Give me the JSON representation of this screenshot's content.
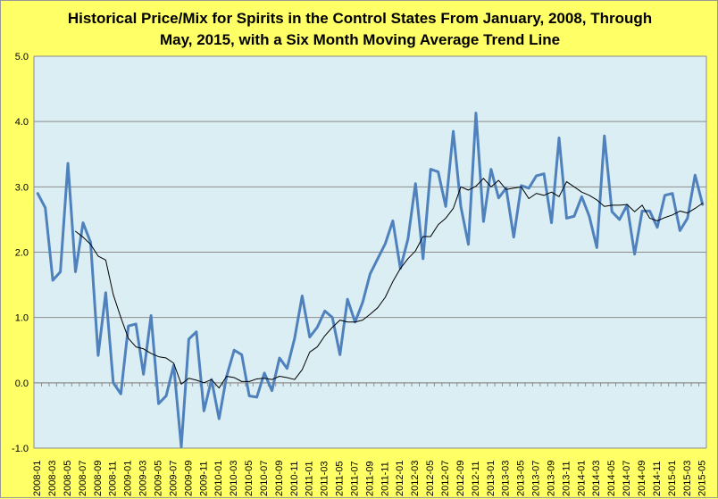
{
  "chart_data": {
    "type": "line",
    "title_lines": [
      "Historical Price/Mix for Spirits in the Control States From January, 2008, Through",
      "May, 2015, with a Six Month Moving Average Trend Line"
    ],
    "xlabel": "",
    "ylabel": "",
    "ylim": [
      -1.0,
      5.0
    ],
    "yticks": [
      "5.0",
      "4.0",
      "3.0",
      "2.0",
      "1.0",
      "0.0",
      "-1.0"
    ],
    "xtick_labels": [
      "2008-01",
      "2008-03",
      "2008-05",
      "2008-07",
      "2008-09",
      "2008-11",
      "2009-01",
      "2009-03",
      "2009-05",
      "2009-07",
      "2009-09",
      "2009-11",
      "2010-01",
      "2010-03",
      "2010-05",
      "2010-07",
      "2010-09",
      "2010-11",
      "2011-01",
      "2011-03",
      "2011-05",
      "2011-07",
      "2011-09",
      "2011-11",
      "2012-01",
      "2012-03",
      "2012-05",
      "2012-07",
      "2012-09",
      "2012-11",
      "2013-01",
      "2013-03",
      "2013-05",
      "2013-07",
      "2013-09",
      "2013-11",
      "2014-01",
      "2014-03",
      "2014-05",
      "2014-07",
      "2014-09",
      "2014-11",
      "2015-01",
      "2015-03",
      "2015-05"
    ],
    "grid": "horizontal",
    "legend": "none",
    "series": [
      {
        "color": "#4f81bd",
        "values": [
          2.9,
          2.68,
          1.57,
          1.7,
          3.36,
          1.7,
          2.45,
          2.15,
          0.42,
          1.38,
          0.0,
          -0.17,
          0.87,
          0.9,
          0.13,
          1.03,
          -0.32,
          -0.2,
          0.27,
          -0.98,
          0.67,
          0.78,
          -0.43,
          0.05,
          -0.55,
          0.1,
          0.5,
          0.43,
          -0.2,
          -0.22,
          0.15,
          -0.12,
          0.38,
          0.22,
          0.68,
          1.33,
          0.7,
          0.85,
          1.1,
          1.0,
          0.43,
          1.28,
          0.93,
          1.23,
          1.67,
          1.9,
          2.13,
          2.48,
          1.75,
          2.2,
          3.05,
          1.9,
          3.27,
          3.23,
          2.7,
          3.85,
          2.7,
          2.12,
          4.13,
          2.47,
          3.27,
          2.83,
          2.98,
          2.23,
          3.02,
          2.98,
          3.17,
          3.2,
          2.45,
          3.75,
          2.52,
          2.55,
          2.85,
          2.55,
          2.07,
          3.78,
          2.62,
          2.5,
          2.72,
          1.97,
          2.63,
          2.63,
          2.38,
          2.87,
          2.9,
          2.33,
          2.52,
          3.18,
          2.73
        ]
      },
      {
        "color": "#000000",
        "values": [
          null,
          null,
          null,
          null,
          null,
          2.32,
          2.23,
          2.12,
          1.94,
          1.88,
          1.35,
          1.0,
          0.68,
          0.55,
          0.52,
          0.45,
          0.4,
          0.38,
          0.3,
          -0.02,
          0.07,
          0.04,
          0.0,
          0.05,
          -0.08,
          0.1,
          0.08,
          0.02,
          0.02,
          0.06,
          0.07,
          0.05,
          0.1,
          0.08,
          0.05,
          0.2,
          0.47,
          0.55,
          0.72,
          0.85,
          0.96,
          0.93,
          0.93,
          0.96,
          1.05,
          1.15,
          1.31,
          1.55,
          1.75,
          1.9,
          2.02,
          2.24,
          2.24,
          2.42,
          2.52,
          2.67,
          3.0,
          2.95,
          3.01,
          3.13,
          3.0,
          3.1,
          2.96,
          2.98,
          3.0,
          2.82,
          2.9,
          2.87,
          2.92,
          2.85,
          3.08,
          3.0,
          2.92,
          2.87,
          2.8,
          2.7,
          2.72,
          2.72,
          2.73,
          2.62,
          2.72,
          2.52,
          2.48,
          2.53,
          2.57,
          2.63,
          2.6,
          2.67,
          2.75
        ]
      }
    ]
  }
}
